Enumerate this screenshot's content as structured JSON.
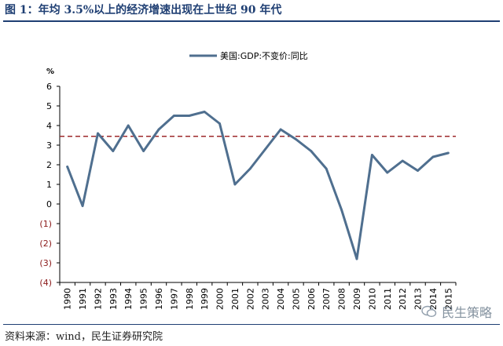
{
  "header": {
    "title": "图 1：年均 3.5%以上的经济增速出现在上世纪 90 年代"
  },
  "footer": {
    "source": "资料来源：wind，民生证券研究院"
  },
  "watermark": {
    "text": "民生策略"
  },
  "colors": {
    "series": "#4f6f8f",
    "reference": "#9e2a2b",
    "title": "#1f3f73",
    "negative_tick": "#8b1a1a"
  },
  "chart_data": {
    "type": "line",
    "title": "",
    "xlabel": "",
    "ylabel": "%",
    "ylim": [
      -4,
      6
    ],
    "grid": false,
    "legend_position": "top-center",
    "y_ticks": [
      {
        "value": 6,
        "label": "6"
      },
      {
        "value": 5,
        "label": "5"
      },
      {
        "value": 4,
        "label": "4"
      },
      {
        "value": 3,
        "label": "3"
      },
      {
        "value": 2,
        "label": "2"
      },
      {
        "value": 1,
        "label": "1"
      },
      {
        "value": 0,
        "label": "0"
      },
      {
        "value": -1,
        "label": "(1)"
      },
      {
        "value": -2,
        "label": "(2)"
      },
      {
        "value": -3,
        "label": "(3)"
      },
      {
        "value": -4,
        "label": "(4)"
      }
    ],
    "x": [
      "1990",
      "1991",
      "1992",
      "1993",
      "1994",
      "1995",
      "1996",
      "1997",
      "1998",
      "1999",
      "2000",
      "2001",
      "2002",
      "2003",
      "2004",
      "2005",
      "2006",
      "2007",
      "2008",
      "2009",
      "2010",
      "2011",
      "2012",
      "2013",
      "2014",
      "2015"
    ],
    "series": [
      {
        "name": "美国:GDP:不变价:同比",
        "values": [
          1.9,
          -0.1,
          3.6,
          2.7,
          4.0,
          2.7,
          3.8,
          4.5,
          4.5,
          4.7,
          4.1,
          1.0,
          1.8,
          2.8,
          3.8,
          3.3,
          2.7,
          1.8,
          -0.3,
          -2.8,
          2.5,
          1.6,
          2.2,
          1.7,
          2.4,
          2.6
        ]
      }
    ],
    "reference_line": {
      "value": 3.45,
      "style": "dashed"
    }
  }
}
